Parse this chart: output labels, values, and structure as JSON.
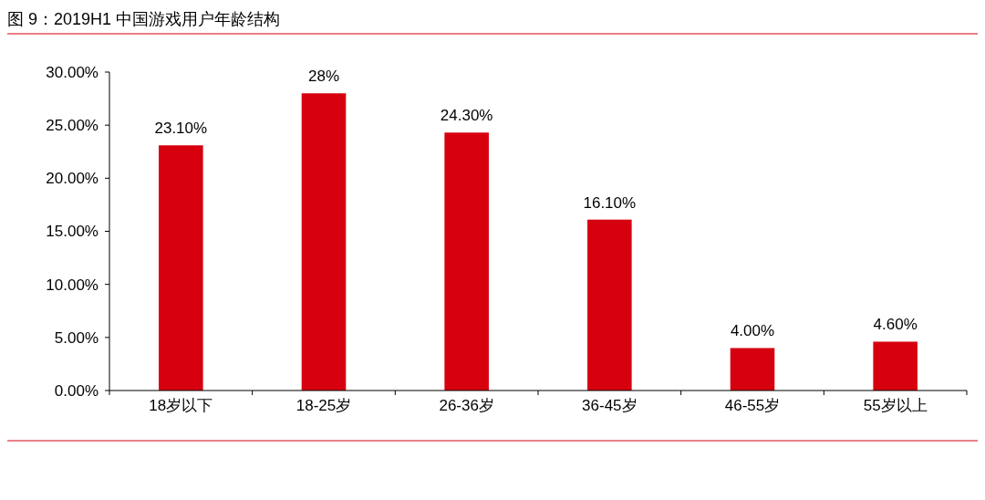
{
  "chart_data": {
    "type": "bar",
    "title": "图 9：2019H1 中国游戏用户年龄结构",
    "categories": [
      "18岁以下",
      "18-25岁",
      "26-36岁",
      "36-45岁",
      "46-55岁",
      "55岁以上"
    ],
    "values": [
      23.1,
      28,
      24.3,
      16.1,
      4,
      4.6
    ],
    "value_labels": [
      "23.10%",
      "28%",
      "24.30%",
      "16.10%",
      "4.00%",
      "4.60%"
    ],
    "color": "#d7000f",
    "ylim": [
      0,
      30
    ],
    "yticks": [
      {
        "value": 0,
        "label": "0.00%"
      },
      {
        "value": 5,
        "label": "5.00%"
      },
      {
        "value": 10,
        "label": "10.00%"
      },
      {
        "value": 15,
        "label": "15.00%"
      },
      {
        "value": 20,
        "label": "20.00%"
      },
      {
        "value": 25,
        "label": "25.00%"
      },
      {
        "value": 30,
        "label": "30.00%"
      }
    ],
    "grid": false
  }
}
